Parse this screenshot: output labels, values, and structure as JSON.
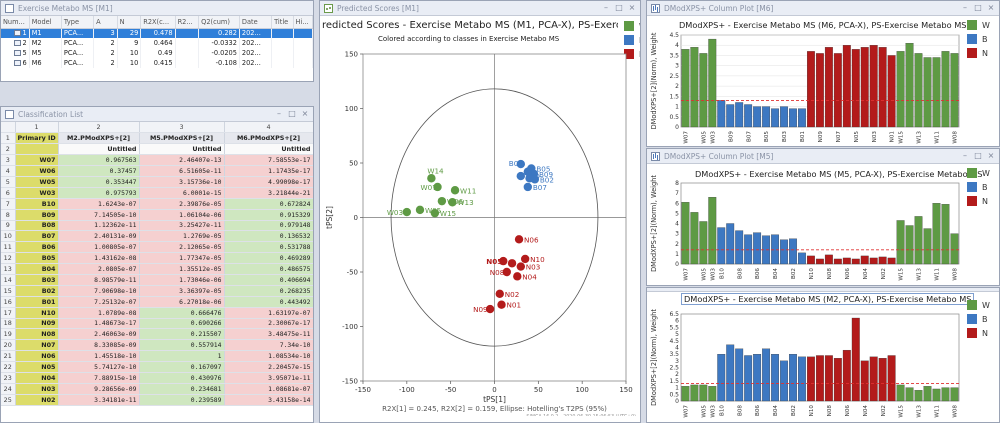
{
  "colors": {
    "W": "#5e9a44",
    "B": "#3d78c2",
    "N": "#b31b1b",
    "threshold": "#e03030",
    "sel": "#2f7fd9"
  },
  "model_window": {
    "title": "Exercise Metabo MS [M1]",
    "columns": [
      "Num...",
      "Model",
      "Type",
      "A",
      "N",
      "R2X(c...",
      "R2...",
      "Q2(cum)",
      "Date",
      "Title",
      "Hi..."
    ],
    "rows": [
      {
        "num": "1",
        "model": "M1",
        "type": "PCA...",
        "a": "3",
        "n": "29",
        "r2x": "0.478",
        "r2": "",
        "q2": "0.282",
        "date": "202...",
        "selected": true
      },
      {
        "num": "2",
        "model": "M2",
        "type": "PCA...",
        "a": "2",
        "n": "9",
        "r2x": "0.464",
        "r2": "",
        "q2": "-0.0332",
        "date": "202...",
        "selected": false
      },
      {
        "num": "5",
        "model": "M5",
        "type": "PCA...",
        "a": "2",
        "n": "10",
        "r2x": "0.49",
        "r2": "",
        "q2": "-0.0205",
        "date": "202...",
        "selected": false
      },
      {
        "num": "6",
        "model": "M6",
        "type": "PCA...",
        "a": "2",
        "n": "10",
        "r2x": "0.415",
        "r2": "",
        "q2": "-0.108",
        "date": "202...",
        "selected": false
      }
    ]
  },
  "classification": {
    "title": "Classification List",
    "col_numbers": [
      "1",
      "2",
      "3",
      "4"
    ],
    "headers": [
      "Primary ID",
      "M2.PModXPS+[2]",
      "M5.PModXPS+[2]",
      "M6.PModXPS+[2]"
    ],
    "subheader": "Untitled",
    "rows": [
      {
        "n": "3",
        "id": "W07",
        "a": "0.967563",
        "b": "2.46407e-13",
        "c": "7.58553e-17",
        "cls": "g"
      },
      {
        "n": "4",
        "id": "W06",
        "a": "0.37457",
        "b": "6.51605e-11",
        "c": "1.17435e-17",
        "cls": "g"
      },
      {
        "n": "5",
        "id": "W05",
        "a": "0.353447",
        "b": "3.15736e-10",
        "c": "4.99098e-17",
        "cls": "g"
      },
      {
        "n": "6",
        "id": "W03",
        "a": "0.975793",
        "b": "6.0001e-15",
        "c": "3.21844e-21",
        "cls": "g"
      },
      {
        "n": "7",
        "id": "B10",
        "a": "1.6243e-07",
        "b": "2.39876e-05",
        "c": "0.672824",
        "cls": "r"
      },
      {
        "n": "8",
        "id": "B09",
        "a": "7.14505e-10",
        "b": "1.06104e-06",
        "c": "0.915329",
        "cls": "r"
      },
      {
        "n": "9",
        "id": "B08",
        "a": "1.12362e-11",
        "b": "3.25427e-11",
        "c": "0.979148",
        "cls": "r"
      },
      {
        "n": "10",
        "id": "B07",
        "a": "2.40131e-09",
        "b": "1.2769e-05",
        "c": "0.136532",
        "cls": "r"
      },
      {
        "n": "11",
        "id": "B06",
        "a": "1.00805e-07",
        "b": "2.12065e-05",
        "c": "0.531788",
        "cls": "r"
      },
      {
        "n": "12",
        "id": "B05",
        "a": "1.43162e-08",
        "b": "1.77347e-05",
        "c": "0.469289",
        "cls": "r"
      },
      {
        "n": "13",
        "id": "B04",
        "a": "2.0805e-07",
        "b": "1.35512e-05",
        "c": "0.486575",
        "cls": "r"
      },
      {
        "n": "14",
        "id": "B03",
        "a": "8.98579e-11",
        "b": "1.73046e-06",
        "c": "0.406694",
        "cls": "r"
      },
      {
        "n": "15",
        "id": "B02",
        "a": "7.90698e-10",
        "b": "3.36397e-05",
        "c": "0.268235",
        "cls": "r"
      },
      {
        "n": "16",
        "id": "B01",
        "a": "7.25132e-07",
        "b": "6.27018e-06",
        "c": "0.443492",
        "cls": "r"
      },
      {
        "n": "17",
        "id": "N10",
        "a": "1.0789e-08",
        "b": "0.666476",
        "c": "1.63197e-07",
        "cls": "b"
      },
      {
        "n": "18",
        "id": "N09",
        "a": "1.48673e-17",
        "b": "0.690266",
        "c": "2.30067e-17",
        "cls": "b"
      },
      {
        "n": "19",
        "id": "N08",
        "a": "2.46063e-09",
        "b": "0.215507",
        "c": "3.48475e-11",
        "cls": "b"
      },
      {
        "n": "20",
        "id": "N07",
        "a": "8.33085e-09",
        "b": "0.557914",
        "c": "7.34e-10",
        "cls": "b"
      },
      {
        "n": "21",
        "id": "N06",
        "a": "1.45518e-10",
        "b": "1",
        "c": "1.08534e-10",
        "cls": "b"
      },
      {
        "n": "22",
        "id": "N05",
        "a": "5.74127e-10",
        "b": "0.167097",
        "c": "2.20457e-15",
        "cls": "b"
      },
      {
        "n": "23",
        "id": "N04",
        "a": "7.88915e-10",
        "b": "0.430976",
        "c": "3.95071e-11",
        "cls": "b"
      },
      {
        "n": "24",
        "id": "N03",
        "a": "9.28656e-09",
        "b": "0.234681",
        "c": "1.08681e-07",
        "cls": "b"
      },
      {
        "n": "25",
        "id": "N02",
        "a": "3.34181e-11",
        "b": "0.239589",
        "c": "3.43158e-14",
        "cls": "b"
      }
    ]
  },
  "scores_window": {
    "title": "Predicted Scores [M1]",
    "chart_title": "redicted Scores - Exercise Metabo MS (M1, PCA-X), PS-Exercise Metabo",
    "subtitle": "Colored according to classes in Exercise Metabo MS",
    "footer": "R2X[1] = 0.245, R2X[2] = 0.159, Ellipse: Hotelling's T2PS (95%)",
    "watermark": "SIMCA 16.0.2 - 2020-06-30 15:06:53 (UTC+0)",
    "xlabel": "tPS[1]",
    "ylabel": "tPS[2]",
    "legend": [
      "W",
      "B",
      "N"
    ]
  },
  "chart_data": [
    {
      "type": "scatter",
      "title": "redicted Scores - Exercise Metabo MS (M1, PCA-X), PS-Exercise Metabo",
      "xlabel": "tPS[1]",
      "ylabel": "tPS[2]",
      "xlim": [
        -150,
        150
      ],
      "ylim": [
        -150,
        150
      ],
      "xticks": [
        -150,
        -100,
        -50,
        0,
        50,
        100,
        150
      ],
      "yticks": [
        -150,
        -100,
        -50,
        0,
        50,
        100,
        150
      ],
      "ellipse_radius": 118,
      "series": [
        {
          "name": "W",
          "points": [
            {
              "label": "W14",
              "x": -72,
              "y": 36
            },
            {
              "label": "W07",
              "x": -65,
              "y": 28
            },
            {
              "label": "W11",
              "x": -45,
              "y": 25
            },
            {
              "label": "W06",
              "x": -60,
              "y": 15
            },
            {
              "label": "W13",
              "x": -48,
              "y": 14
            },
            {
              "label": "W03",
              "x": -100,
              "y": 5
            },
            {
              "label": "W05",
              "x": -85,
              "y": 7
            },
            {
              "label": "W15",
              "x": -68,
              "y": 4
            }
          ]
        },
        {
          "name": "B",
          "points": [
            {
              "label": "B08",
              "x": 30,
              "y": 49
            },
            {
              "label": "B05",
              "x": 42,
              "y": 45
            },
            {
              "label": "B09",
              "x": 45,
              "y": 40
            },
            {
              "label": "B10",
              "x": 30,
              "y": 38
            },
            {
              "label": "B02",
              "x": 46,
              "y": 35
            },
            {
              "label": "B07",
              "x": 38,
              "y": 28
            },
            {
              "label": "B",
              "x": 38,
              "y": 42
            },
            {
              "label": "B",
              "x": 40,
              "y": 36
            }
          ]
        },
        {
          "name": "N",
          "points": [
            {
              "label": "N06",
              "x": 28,
              "y": -20
            },
            {
              "label": "N05",
              "x": 10,
              "y": -40
            },
            {
              "label": "N10",
              "x": 35,
              "y": -38
            },
            {
              "label": "N03",
              "x": 30,
              "y": -45
            },
            {
              "label": "N08",
              "x": 14,
              "y": -50
            },
            {
              "label": "N04",
              "x": 26,
              "y": -54
            },
            {
              "label": "N02",
              "x": 6,
              "y": -70
            },
            {
              "label": "N01",
              "x": 8,
              "y": -80
            },
            {
              "label": "N09",
              "x": -5,
              "y": -84
            },
            {
              "label": "N",
              "x": 20,
              "y": -42
            }
          ]
        }
      ]
    },
    {
      "type": "bar",
      "title": "DModXPS+ - Exercise Metabo MS (M6, PCA-X), PS-Exercise Metabo MS",
      "ylabel": "DModXPS+[2](Norm), Weight",
      "ylim": [
        0,
        4.5
      ],
      "yticks": [
        0,
        0.5,
        1,
        1.5,
        2,
        2.5,
        3,
        3.5,
        4,
        4.5
      ],
      "threshold": 1.3,
      "tick_labels": [
        "W07",
        "W05",
        "W03",
        "B09",
        "B07",
        "B05",
        "B03",
        "B01",
        "N09",
        "N07",
        "N05",
        "N03",
        "N01",
        "W15",
        "W13",
        "W11",
        "W08"
      ],
      "categories": [
        "W07",
        "W06",
        "W05",
        "W03",
        "B10",
        "B09",
        "B08",
        "B07",
        "B06",
        "B05",
        "B04",
        "B03",
        "B02",
        "B01",
        "N10",
        "N09",
        "N08",
        "N07",
        "N06",
        "N05",
        "N04",
        "N03",
        "N02",
        "N01",
        "W15",
        "W14",
        "W13",
        "W12",
        "W11",
        "W10",
        "W08"
      ],
      "values": [
        3.8,
        3.9,
        3.6,
        4.3,
        1.3,
        1.1,
        1.2,
        1.1,
        1.0,
        1.0,
        0.9,
        1.0,
        0.9,
        0.9,
        3.7,
        3.6,
        3.9,
        3.6,
        4.0,
        3.8,
        3.9,
        4.0,
        3.9,
        3.5,
        3.7,
        4.1,
        3.6,
        3.4,
        3.4,
        3.7,
        3.6
      ],
      "classes": [
        "W",
        "W",
        "W",
        "W",
        "B",
        "B",
        "B",
        "B",
        "B",
        "B",
        "B",
        "B",
        "B",
        "B",
        "N",
        "N",
        "N",
        "N",
        "N",
        "N",
        "N",
        "N",
        "N",
        "N",
        "W",
        "W",
        "W",
        "W",
        "W",
        "W",
        "W"
      ]
    },
    {
      "type": "bar",
      "title": "DModXPS+ - Exercise Metabo MS (M5, PCA-X), PS-Exercise Metabo MS",
      "ylabel": "DModXPS+[2](Norm), Weight",
      "ylim": [
        0,
        8
      ],
      "yticks": [
        0,
        1,
        2,
        3,
        4,
        5,
        6,
        7,
        8
      ],
      "threshold": 1.4,
      "tick_labels": [
        "W07",
        "W05",
        "W03",
        "B10",
        "B08",
        "B06",
        "B04",
        "B02",
        "N10",
        "N08",
        "N06",
        "N04",
        "N02",
        "W15",
        "W13",
        "W11",
        "W08"
      ],
      "categories": [
        "W07",
        "W06",
        "W05",
        "W03",
        "B10",
        "B09",
        "B08",
        "B07",
        "B06",
        "B05",
        "B04",
        "B03",
        "B02",
        "B01",
        "N10",
        "N09",
        "N08",
        "N07",
        "N06",
        "N05",
        "N04",
        "N03",
        "N02",
        "N01",
        "W15",
        "W14",
        "W13",
        "W12",
        "W11",
        "W10",
        "W08"
      ],
      "values": [
        6.1,
        5.1,
        4.2,
        6.6,
        3.6,
        4.0,
        3.3,
        2.9,
        3.1,
        2.8,
        2.9,
        2.4,
        2.5,
        1.1,
        0.8,
        0.5,
        0.9,
        0.5,
        0.6,
        0.5,
        0.8,
        0.6,
        0.7,
        0.6,
        4.3,
        3.8,
        4.7,
        3.5,
        6.0,
        5.9,
        3.0
      ],
      "classes": [
        "W",
        "W",
        "W",
        "W",
        "B",
        "B",
        "B",
        "B",
        "B",
        "B",
        "B",
        "B",
        "B",
        "B",
        "N",
        "N",
        "N",
        "N",
        "N",
        "N",
        "N",
        "N",
        "N",
        "N",
        "W",
        "W",
        "W",
        "W",
        "W",
        "W",
        "W"
      ]
    },
    {
      "type": "bar",
      "title": "DModXPS+ - Exercise Metabo MS (M2, PCA-X), PS-Exercise Metabo MS",
      "ylabel": "DModXPS+[2](Norm), Weight",
      "ylim": [
        0,
        6.5
      ],
      "yticks": [
        0,
        0.5,
        1,
        1.5,
        2,
        2.5,
        3,
        3.5,
        4,
        4.5,
        5,
        5.5,
        6,
        6.5
      ],
      "threshold": 1.3,
      "tick_labels": [
        "W07",
        "W05",
        "W03",
        "B10",
        "B08",
        "B06",
        "B04",
        "B02",
        "N10",
        "N08",
        "N06",
        "N04",
        "N02",
        "W15",
        "W13",
        "W11",
        "W08"
      ],
      "categories": [
        "W07",
        "W06",
        "W05",
        "W03",
        "B10",
        "B09",
        "B08",
        "B07",
        "B06",
        "B05",
        "B04",
        "B03",
        "B02",
        "B01",
        "N10",
        "N09",
        "N08",
        "N07",
        "N06",
        "N05",
        "N04",
        "N03",
        "N02",
        "N01",
        "W15",
        "W14",
        "W13",
        "W12",
        "W11",
        "W10",
        "W08"
      ],
      "values": [
        1.1,
        1.2,
        1.2,
        1.1,
        3.5,
        4.2,
        3.9,
        3.4,
        3.5,
        3.9,
        3.5,
        3.0,
        3.5,
        3.3,
        3.3,
        3.4,
        3.4,
        3.2,
        3.8,
        6.2,
        3.0,
        3.3,
        3.2,
        3.4,
        1.2,
        1.0,
        0.8,
        1.1,
        0.9,
        1.0,
        1.0
      ],
      "classes": [
        "W",
        "W",
        "W",
        "W",
        "B",
        "B",
        "B",
        "B",
        "B",
        "B",
        "B",
        "B",
        "B",
        "B",
        "N",
        "N",
        "N",
        "N",
        "N",
        "N",
        "N",
        "N",
        "N",
        "N",
        "W",
        "W",
        "W",
        "W",
        "W",
        "W",
        "W"
      ]
    }
  ],
  "dmod_windows": [
    {
      "title": "DModXPS+ Column Plot [M6]"
    },
    {
      "title": "DModXPS+ Column Plot [M5]"
    },
    {
      "title": "DModXPS+ Column Plot [M2]"
    }
  ]
}
